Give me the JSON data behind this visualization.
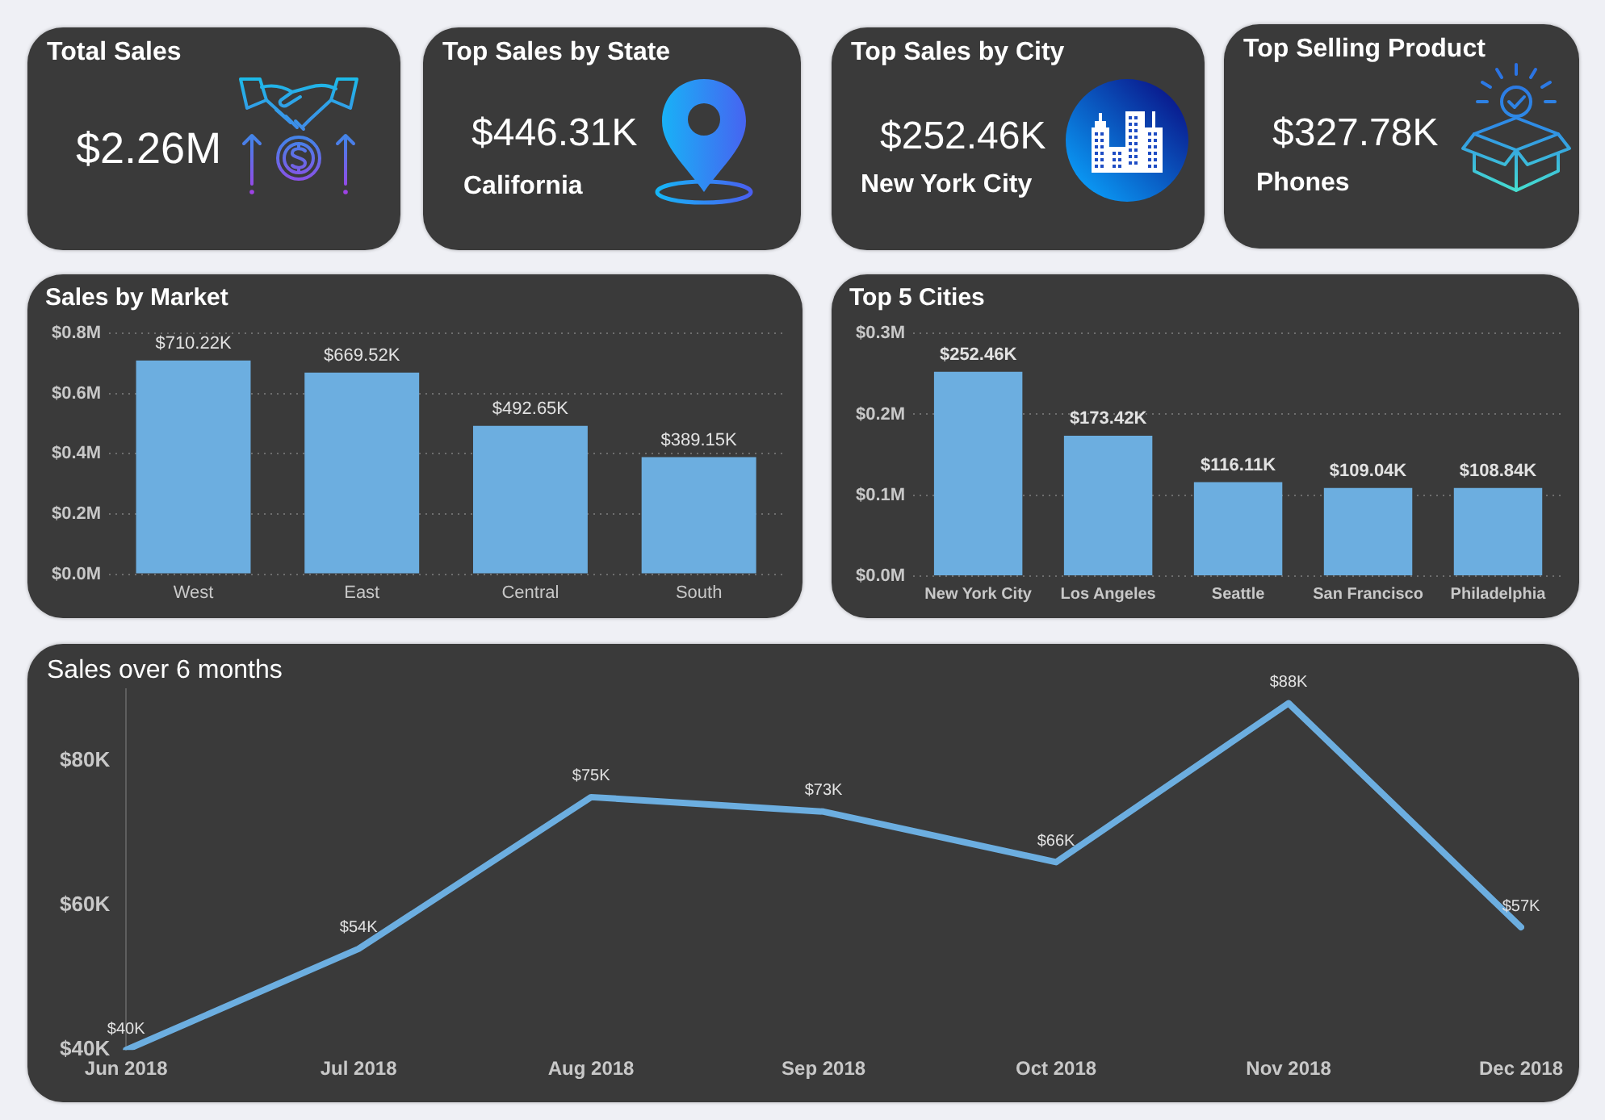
{
  "chart_data": [
    {
      "type": "other",
      "title": "Total Sales",
      "annotations": [
        "$2.26M"
      ]
    },
    {
      "type": "other",
      "title": "Top Sales by State",
      "annotations": [
        "$446.31K",
        "California"
      ]
    },
    {
      "type": "other",
      "title": "Top Sales by City",
      "annotations": [
        "$252.46K",
        "New York City"
      ]
    },
    {
      "type": "other",
      "title": "Top Selling Product",
      "annotations": [
        "$327.78K",
        "Phones"
      ]
    },
    {
      "type": "bar",
      "title": "Sales by Market",
      "categories": [
        "West",
        "East",
        "Central",
        "South"
      ],
      "values": [
        710220,
        669520,
        492650,
        389150
      ],
      "value_labels": [
        "$710.22K",
        "$669.52K",
        "$492.65K",
        "$389.15K"
      ],
      "color": "#6caee0",
      "ylim": [
        0,
        800000
      ],
      "yticks": [
        {
          "value": 0,
          "label": "$0.0M"
        },
        {
          "value": 200000,
          "label": "$0.2M"
        },
        {
          "value": 400000,
          "label": "$0.4M"
        },
        {
          "value": 600000,
          "label": "$0.6M"
        },
        {
          "value": 800000,
          "label": "$0.8M"
        }
      ],
      "grid": "y"
    },
    {
      "type": "bar",
      "title": "Top 5 Cities",
      "categories": [
        "New York City",
        "Los Angeles",
        "Seattle",
        "San Francisco",
        "Philadelphia"
      ],
      "values": [
        252460,
        173420,
        116110,
        109040,
        108840
      ],
      "value_labels": [
        "$252.46K",
        "$173.42K",
        "$116.11K",
        "$109.04K",
        "$108.84K"
      ],
      "color": "#6caee0",
      "ylim": [
        0,
        300000
      ],
      "yticks": [
        {
          "value": 0,
          "label": "$0.0M"
        },
        {
          "value": 100000,
          "label": "$0.1M"
        },
        {
          "value": 200000,
          "label": "$0.2M"
        },
        {
          "value": 300000,
          "label": "$0.3M"
        }
      ],
      "grid": "y"
    },
    {
      "type": "line",
      "title": "Sales over 6 months",
      "categories": [
        "Jun 2018",
        "Jul 2018",
        "Aug 2018",
        "Sep 2018",
        "Oct 2018",
        "Nov 2018",
        "Dec 2018"
      ],
      "values": [
        40,
        54,
        75,
        73,
        66,
        88,
        57
      ],
      "value_labels": [
        "$40K",
        "$54K",
        "$75K",
        "$73K",
        "$66K",
        "$88K",
        "$57K"
      ],
      "color": "#6caee0",
      "ylim": [
        40,
        90
      ],
      "yticks": [
        {
          "value": 40,
          "label": "$40K"
        },
        {
          "value": 60,
          "label": "$60K"
        },
        {
          "value": 80,
          "label": "$80K"
        }
      ]
    }
  ]
}
